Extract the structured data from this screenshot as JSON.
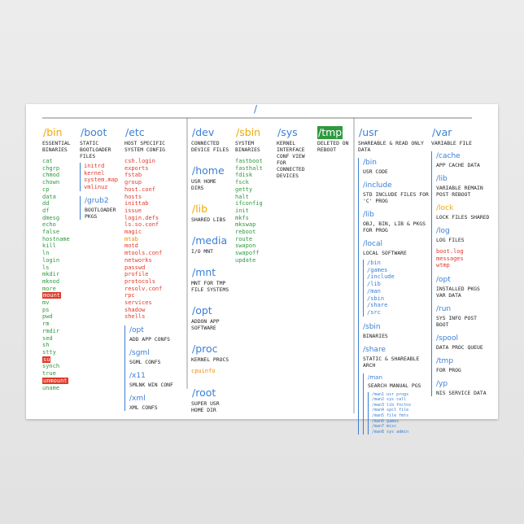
{
  "root": "/",
  "columns": [
    {
      "blocks": [
        {
          "title": "/bin",
          "title_color": "#f0a800",
          "desc": "ESSENTIAL BINARIES",
          "item_color": "#2e9a3e",
          "items": [
            "cat",
            "chgrp",
            "chmod",
            "chown",
            "cp",
            "data",
            "dd",
            "df",
            "dmesg",
            "echo",
            "false",
            "hostname",
            "kill",
            "ln",
            "login",
            "ls",
            "mkdir",
            "mknod",
            "more",
            {
              "text": "mount",
              "highlight": true
            },
            "mv",
            "ps",
            "pwd",
            "rm",
            "rmdir",
            "sed",
            "sh",
            "stty",
            {
              "text": "su",
              "highlight": true
            },
            "synch",
            "true",
            {
              "text": "unmount",
              "highlight": true
            },
            "uname"
          ]
        }
      ]
    },
    {
      "blocks": [
        {
          "title": "/boot",
          "desc": "STATIC BOOTLOADER FILES",
          "item_color": "#e03a2a",
          "items_border": true,
          "items": [
            "initrd",
            "kernel",
            "system.map",
            "vmlinuz"
          ],
          "children": [
            {
              "title": "/grub2",
              "desc": "BOOTLOADER PKGS"
            }
          ]
        }
      ]
    },
    {
      "blocks": [
        {
          "title": "/etc",
          "desc": "HOST SPECIFIC SYSTEM CONFIG",
          "item_color": "#e03a2a",
          "items": [
            "csh.login",
            "exports",
            "fstab",
            "group",
            "host.conf",
            "hosts",
            "inittab",
            "issue",
            "login.defs",
            "ls.so.conf",
            "magic",
            {
              "text": "mtab",
              "color": "#f08a00"
            },
            "motd",
            "mtools.conf",
            "networks",
            "passwd",
            "profile",
            "protocols",
            "resolv.conf",
            "rpc",
            "services",
            "shadow",
            "shells"
          ],
          "children": [
            {
              "title": "/opt",
              "desc": "ADD APP CONFS"
            },
            {
              "title": "/sgml",
              "desc": "SGML CONFS"
            },
            {
              "title": "/x11",
              "desc": "SMLNK WIN CONF"
            },
            {
              "title": "/xml",
              "desc": "XML CONFS"
            }
          ]
        }
      ]
    },
    {
      "blocks": [
        {
          "title": "/dev",
          "desc": "CONNECTED DEVICE FILES"
        },
        {
          "title": "/home",
          "desc": "USR HOME DIRS"
        },
        {
          "title": "/lib",
          "title_color": "#f0a800",
          "desc": "SHARED LIBS"
        },
        {
          "title": "/media",
          "desc": "I/O MNT"
        },
        {
          "title": "/mnt",
          "desc": "MNT FOR TMP FILE SYSTEMS"
        },
        {
          "title": "/opt",
          "desc": "ADDON APP SOFTWARE"
        },
        {
          "title": "/proc",
          "desc": "KERNEL PROCS",
          "item_color": "#f08a00",
          "items": [
            "cpuinfo"
          ]
        },
        {
          "title": "/root",
          "desc": "SUPER USR HOME DIR"
        }
      ]
    },
    {
      "blocks": [
        {
          "title": "/sbin",
          "title_color": "#f0a800",
          "desc": "SYSTEM BINARIES",
          "item_color": "#2e9a3e",
          "items": [
            "fastboot",
            "fasthalt",
            "fdisk",
            "fsck",
            "getty",
            "halt",
            "ifconfig",
            "init",
            "mkfs",
            "mkswap",
            "reboot",
            "route",
            "swapon",
            "swapoff",
            "update"
          ]
        }
      ]
    },
    {
      "blocks": [
        {
          "title": "/sys",
          "desc": "KERNEL INTERFACE CONF VIEW FOR CONNECTED DEVICES"
        }
      ]
    },
    {
      "blocks": [
        {
          "title": "/tmp",
          "title_color": "#ffffff",
          "title_bg": "#2e9a3e",
          "desc": "DELETED ON REBOOT"
        }
      ]
    },
    {
      "blocks": [
        {
          "title": "/usr",
          "desc": "SHAREABLE & READ ONLY DATA",
          "children": [
            {
              "title": "/bin",
              "desc": "USR CODE"
            },
            {
              "title": "/include",
              "desc": "STD INCLUDE FILES FOR 'C' PROG"
            },
            {
              "title": "/lib",
              "desc": "OBJ, BIN, LIB & PKGS FOR PROG"
            },
            {
              "title": "/local",
              "desc": "LOCAL SOFTWARE",
              "item_color": "#3a7fd5",
              "items_border": true,
              "items": [
                "/bin",
                "/games",
                "/include",
                "/lib",
                "/man",
                "/sbin",
                "/share",
                "/src"
              ]
            },
            {
              "title": "/sbin",
              "desc": "BINARIES"
            },
            {
              "title": "/share",
              "desc": "STATIC & SHAREABLE ARCH",
              "children": [
                {
                  "title": "/man",
                  "desc": "SEARCH MANUAL PGS",
                  "item_color": "#3a7fd5",
                  "items_border": true,
                  "items_small": true,
                  "items": [
                    "/man1 usr progs",
                    "/man2 sys call",
                    "/man3 lib fnctns",
                    "/man4 spcl file",
                    "/man5 file fmts",
                    "/man6 games",
                    "/man7 misc",
                    "/man8 sys admin"
                  ]
                }
              ]
            }
          ]
        }
      ]
    },
    {
      "blocks": [
        {
          "title": "/var",
          "desc": "VARIABLE FILE",
          "children": [
            {
              "title": "/cache",
              "desc": "APP CACHE DATA"
            },
            {
              "title": "/lib",
              "desc": "VARIABLE REMAIN POST REBOOT"
            },
            {
              "title": "/lock",
              "title_color": "#f0a800",
              "desc": "LOCK FILES SHARED"
            },
            {
              "title": "/log",
              "desc": "LOG FILES",
              "item_color": "#e03a2a",
              "items": [
                "boot.log",
                "messages",
                "wtmp"
              ]
            },
            {
              "title": "/opt",
              "desc": "INSTALLED PKGS VAR DATA"
            },
            {
              "title": "/run",
              "desc": "SYS INFO POST BOOT"
            },
            {
              "title": "/spool",
              "desc": "DATA PROC QUEUE"
            },
            {
              "title": "/tmp",
              "desc": "FOR PROG"
            },
            {
              "title": "/yp",
              "desc": "NIS SERVICE DATA"
            }
          ]
        }
      ]
    }
  ]
}
